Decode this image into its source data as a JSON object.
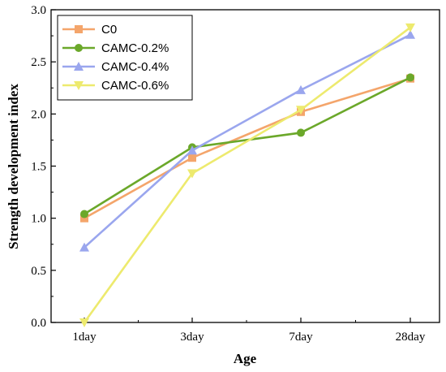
{
  "chart_data": {
    "type": "line",
    "categories": [
      "1day",
      "3day",
      "7day",
      "28day"
    ],
    "xlabel": "Age",
    "ylabel": "Strength development index",
    "ylim": [
      0.0,
      3.0
    ],
    "yticks": [
      "0.0",
      "0.5",
      "1.0",
      "1.5",
      "2.0",
      "2.5",
      "3.0"
    ],
    "legend_position": "top-left",
    "grid": false,
    "series": [
      {
        "name": "C0",
        "color": "#F4A56B",
        "marker": "square",
        "values": [
          1.0,
          1.58,
          2.02,
          2.34
        ]
      },
      {
        "name": "CAMC-0.2%",
        "color": "#6BA82A",
        "marker": "circle",
        "values": [
          1.04,
          1.68,
          1.82,
          2.35
        ]
      },
      {
        "name": "CAMC-0.4%",
        "color": "#9AA6EE",
        "marker": "triangle-up",
        "values": [
          0.72,
          1.65,
          2.23,
          2.76
        ]
      },
      {
        "name": "CAMC-0.6%",
        "color": "#EDEA6E",
        "marker": "triangle-down",
        "values": [
          0.0,
          1.43,
          2.04,
          2.83
        ]
      }
    ]
  }
}
